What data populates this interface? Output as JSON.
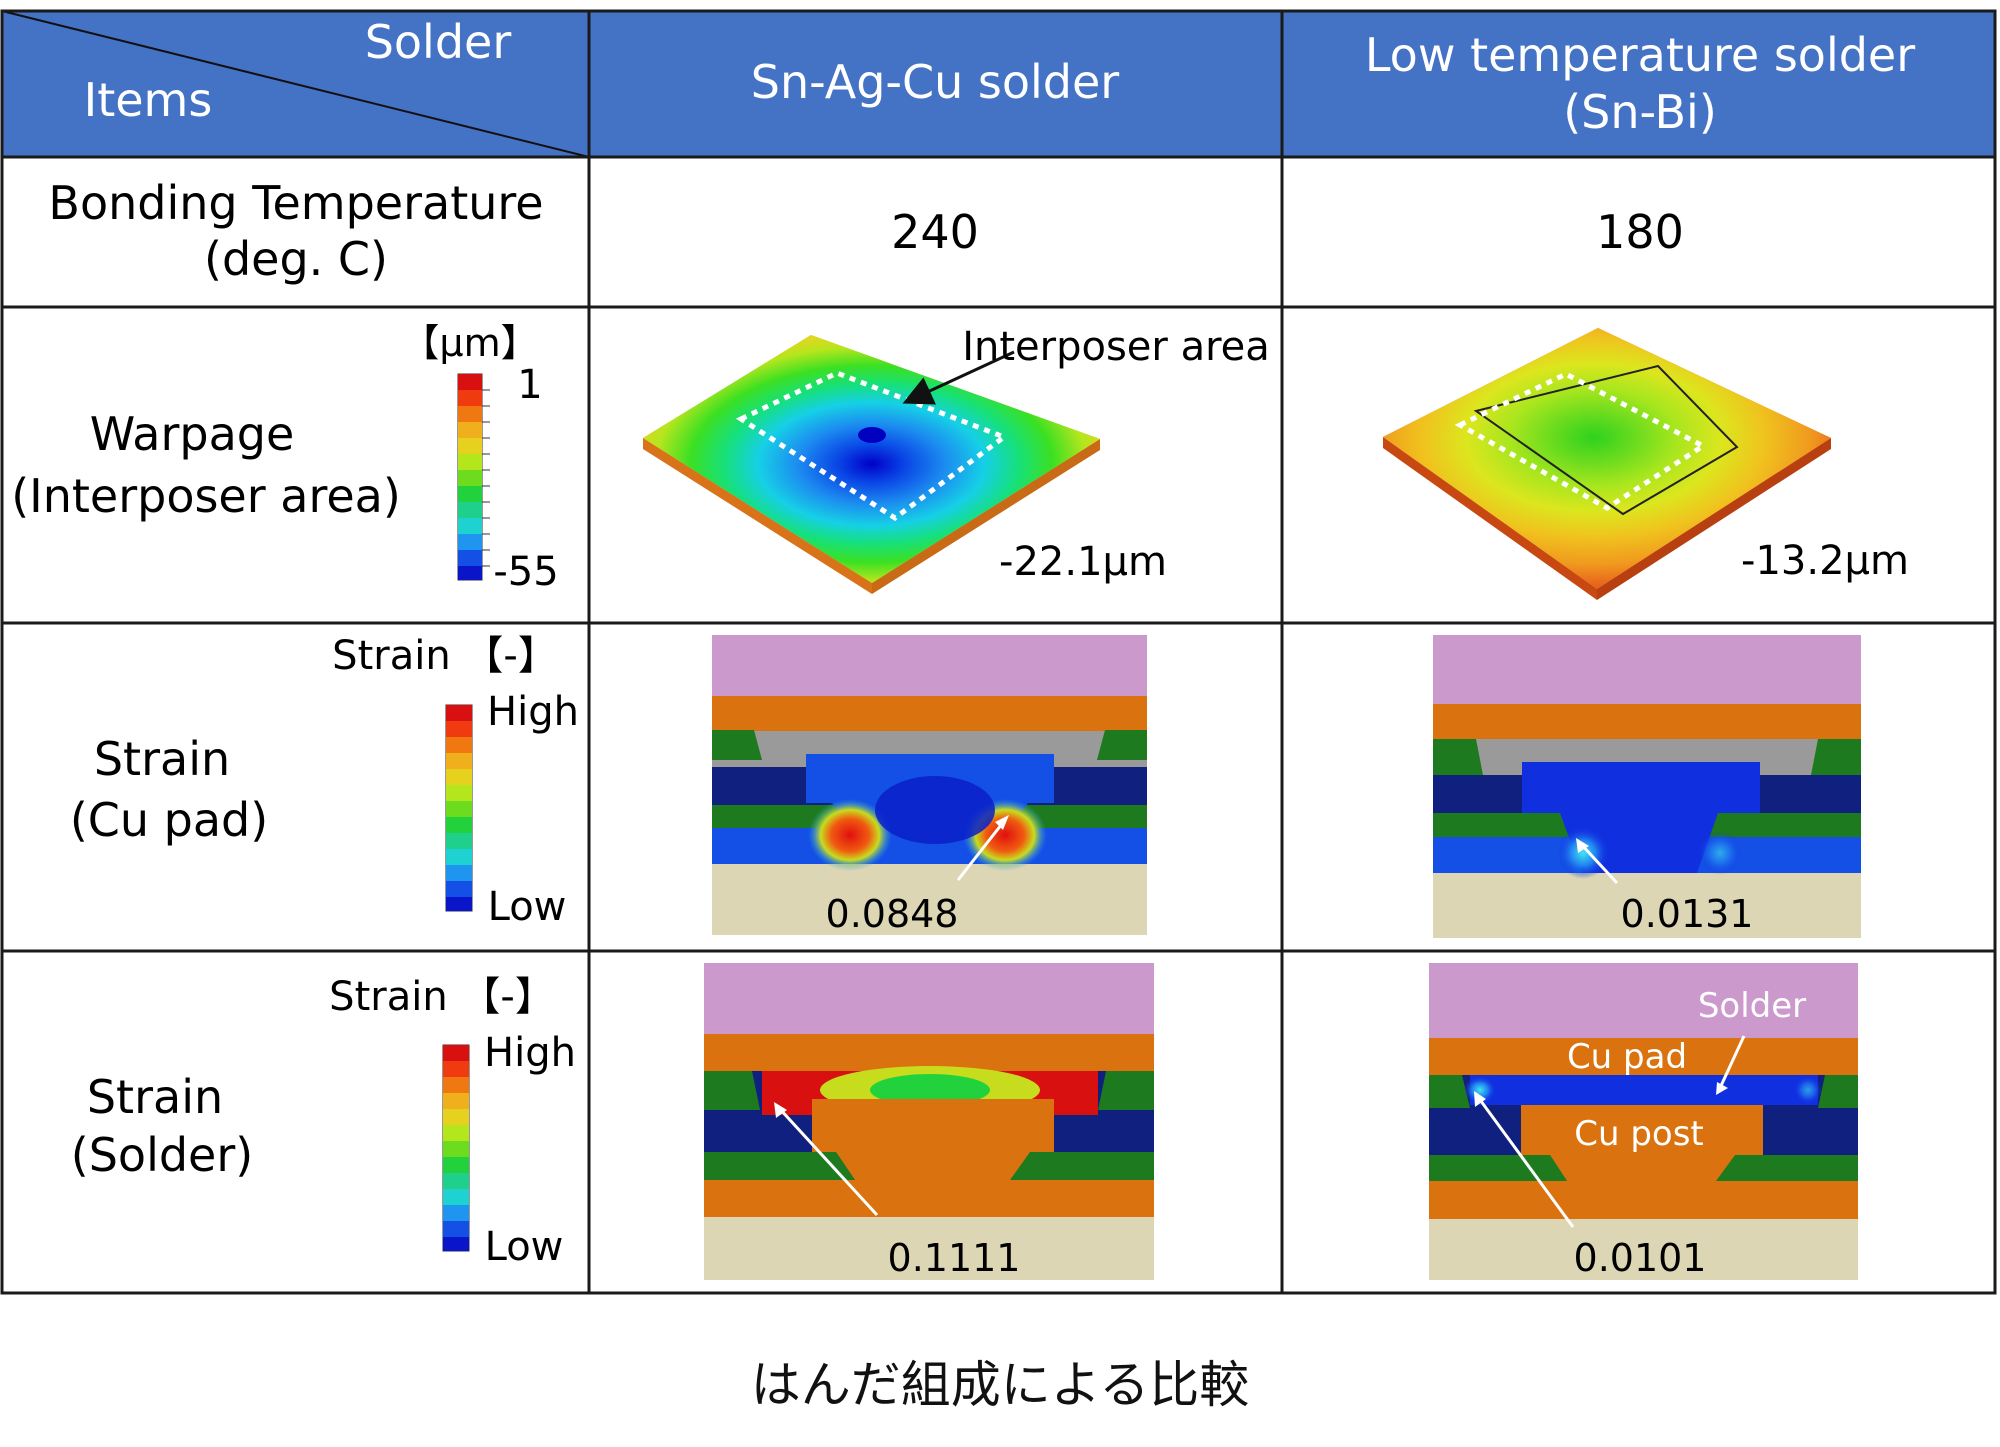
{
  "table": {
    "corner": {
      "top_label": "Solder",
      "bottom_label": "Items"
    },
    "columns": [
      {
        "line1": "Sn-Ag-Cu solder",
        "line2": ""
      },
      {
        "line1": "Low temperature solder",
        "line2": "(Sn-Bi)"
      }
    ],
    "rows": {
      "bonding": {
        "label_line1": "Bonding Temperature",
        "label_line2": "(deg. C)",
        "values": [
          "240",
          "180"
        ]
      },
      "warpage": {
        "label_line1": "Warpage",
        "label_line2": "(Interposer area)",
        "scale_unit": "【μm】",
        "scale_max": "1",
        "scale_min": "-55",
        "annotation": "Interposer area",
        "values": [
          "-22.1μm",
          "-13.2μm"
        ]
      },
      "strain_cu": {
        "label_line1": "Strain",
        "label_line2": "(Cu pad)",
        "scale_title": "Strain 【-】",
        "scale_high": "High",
        "scale_low": "Low",
        "values": [
          "0.0848",
          "0.0131"
        ]
      },
      "strain_solder": {
        "label_line1": "Strain",
        "label_line2": "(Solder)",
        "scale_title": "Strain 【-】",
        "scale_high": "High",
        "scale_low": "Low",
        "values": [
          "0.1111",
          "0.0101"
        ],
        "callouts": {
          "solder": "Solder",
          "cu_pad": "Cu pad",
          "cu_post": "Cu post"
        }
      }
    }
  },
  "caption": "はんだ組成による比較",
  "colors": {
    "header_bg": "#4472C4",
    "header_text": "#ffffff",
    "grid": "#1a1a1a",
    "substrate_top": "#CC99CC",
    "copper": "#D9720F",
    "base": "#DCD6B4",
    "dark_blue": "#10207E",
    "green_layer": "#1E7A1E",
    "gray": "#9A9A9A"
  },
  "icons": [
    "white-arrow-icon",
    "black-arrow-icon"
  ]
}
